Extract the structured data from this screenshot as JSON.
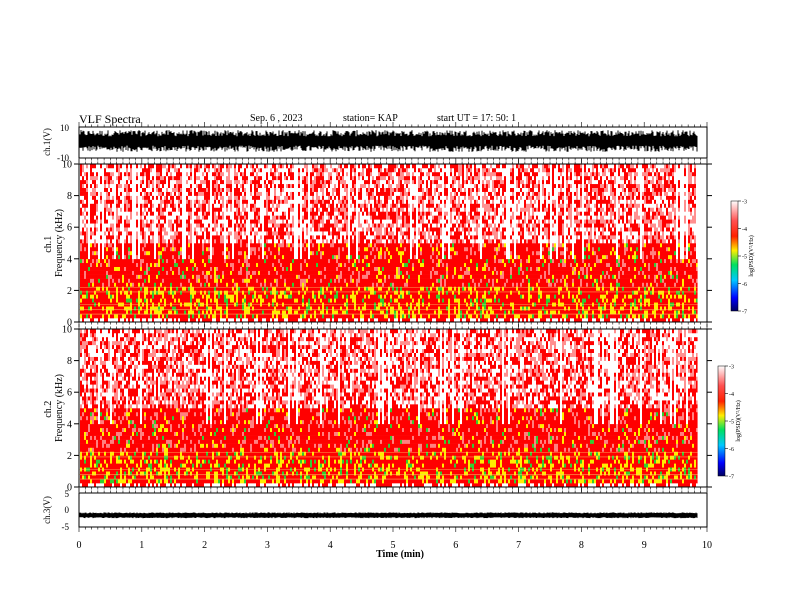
{
  "header": {
    "title": "VLF Spectra",
    "date": "Sep. 6 , 2023",
    "station": "station= KAP",
    "start_time": "start UT = 17: 50: 1"
  },
  "colors": {
    "spectrum_low": "#000080",
    "spectrum_mid_low": "#00c8ff",
    "spectrum_mid": "#33cc33",
    "spectrum_mid_high": "#ffee00",
    "spectrum_high": "#ff0000",
    "spectrum_top": "#ffffff",
    "trace": "#000000"
  },
  "chart_data": [
    {
      "type": "line",
      "panel": "ch1-waveform",
      "ylabel": "ch.1(V)",
      "ylim": [
        -10,
        10
      ],
      "y_ticks": [
        "10",
        "-10"
      ],
      "xlim": [
        0,
        10
      ],
      "description": "dense noisy waveform filling roughly -6 to +8 V"
    },
    {
      "type": "heatmap",
      "panel": "ch1-spectrogram",
      "ylabel": "ch.1\nFrequency (kHz)",
      "ylim": [
        0,
        10
      ],
      "y_ticks": [
        "0",
        "2",
        "4",
        "6",
        "8",
        "10"
      ],
      "xlim": [
        0,
        9.85
      ],
      "colorbar": {
        "label": "log(PSD)(V²/Hz)",
        "ticks": [
          "-3",
          "-4",
          "-5",
          "-6",
          "-7"
        ],
        "range": [
          -7,
          -3
        ]
      }
    },
    {
      "type": "heatmap",
      "panel": "ch2-spectrogram",
      "ylabel": "ch.2\nFrequency (kHz)",
      "ylim": [
        0,
        10
      ],
      "y_ticks": [
        "0",
        "2",
        "4",
        "6",
        "8",
        "10"
      ],
      "xlim": [
        0,
        9.85
      ],
      "colorbar": {
        "label": "log(PSD)(V²/Hz)",
        "ticks": [
          "-3",
          "-4",
          "-5",
          "-6",
          "-7"
        ],
        "range": [
          -7,
          -3
        ]
      }
    },
    {
      "type": "line",
      "panel": "ch3-waveform",
      "ylabel": "ch.3(V)",
      "ylim": [
        -5,
        5
      ],
      "y_ticks": [
        "5",
        "0",
        "-5"
      ],
      "xlim": [
        0,
        10
      ],
      "description": "narrow band centred near -1.5 V"
    }
  ],
  "x_axis": {
    "label": "Time (min)",
    "ticks": [
      "0",
      "1",
      "2",
      "3",
      "4",
      "5",
      "6",
      "7",
      "8",
      "9",
      "10"
    ]
  }
}
